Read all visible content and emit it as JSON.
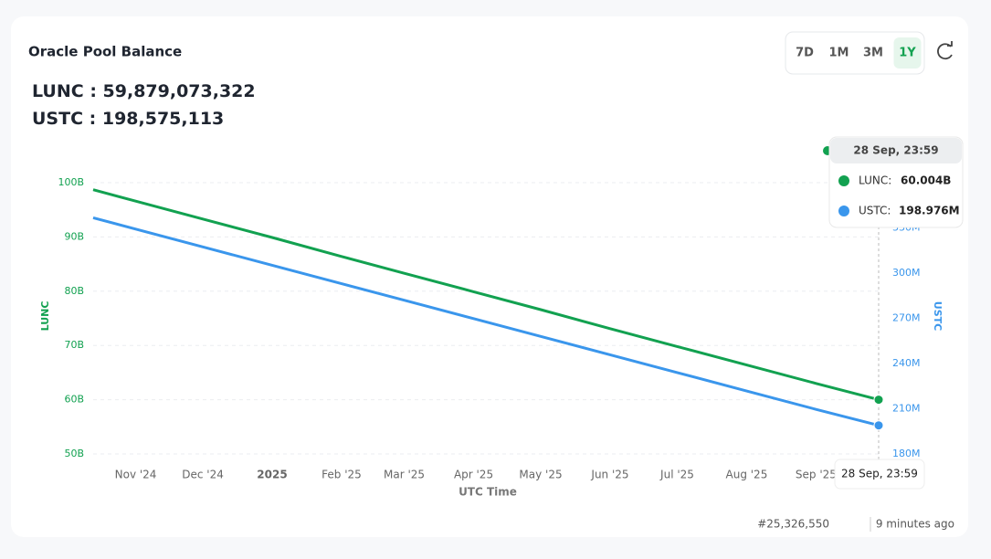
{
  "header": {
    "title": "Oracle Pool Balance",
    "balances": [
      {
        "label": "LUNC : ",
        "value": "59,879,073,322"
      },
      {
        "label": "USTC : ",
        "value": "198,575,113"
      }
    ]
  },
  "controls": {
    "ranges": [
      "7D",
      "1M",
      "3M",
      "1Y"
    ],
    "active": "1Y"
  },
  "chart_data": {
    "type": "line",
    "x": [
      "2024-10-13",
      "2024-11-01",
      "2024-12-01",
      "2025-01-01",
      "2025-02-01",
      "2025-03-01",
      "2025-04-01",
      "2025-05-01",
      "2025-06-01",
      "2025-07-01",
      "2025-08-01",
      "2025-09-01",
      "2025-09-28T23:59"
    ],
    "xlim": [
      "2024-10-13",
      "2025-09-28T23:59"
    ],
    "xticks": [
      {
        "value": "2024-11-01",
        "label": "Nov '24"
      },
      {
        "value": "2024-12-01",
        "label": "Dec '24"
      },
      {
        "value": "2025-01-01",
        "label": "2025"
      },
      {
        "value": "2025-02-01",
        "label": "Feb '25"
      },
      {
        "value": "2025-03-01",
        "label": "Mar '25"
      },
      {
        "value": "2025-04-01",
        "label": "Apr '25"
      },
      {
        "value": "2025-05-01",
        "label": "May '25"
      },
      {
        "value": "2025-06-01",
        "label": "Jun '25"
      },
      {
        "value": "2025-07-01",
        "label": "Jul '25"
      },
      {
        "value": "2025-08-01",
        "label": "Aug '25"
      },
      {
        "value": "2025-09-01",
        "label": "Sep '25"
      }
    ],
    "x_label": "UTC Time",
    "y_label": "LUNC",
    "y2_label": "USTC",
    "ylim": [
      50,
      100
    ],
    "yticks": [
      {
        "value": 50,
        "label": "50B"
      },
      {
        "value": 60,
        "label": "60B"
      },
      {
        "value": 70,
        "label": "70B"
      },
      {
        "value": 80,
        "label": "80B"
      },
      {
        "value": 90,
        "label": "90B"
      },
      {
        "value": 100,
        "label": "100B"
      }
    ],
    "y2lim": [
      180,
      360
    ],
    "y2ticks": [
      {
        "value": 180,
        "label": "180M"
      },
      {
        "value": 210,
        "label": "210M"
      },
      {
        "value": 240,
        "label": "240M"
      },
      {
        "value": 270,
        "label": "270M"
      },
      {
        "value": 300,
        "label": "300M"
      },
      {
        "value": 330,
        "label": "330M"
      }
    ],
    "grid": true,
    "series": [
      {
        "name": "LUNC",
        "color": "#12a150",
        "values": [
          98.7,
          96.6,
          93.3,
          89.9,
          86.4,
          83.3,
          79.9,
          76.6,
          73.1,
          69.8,
          66.4,
          63.0,
          60.004
        ]
      },
      {
        "name": "USTC",
        "color": "#3a96ec",
        "axis": "y2",
        "values": [
          336.7,
          329.2,
          317.4,
          305.2,
          293.0,
          282.0,
          269.8,
          258.0,
          245.8,
          234.0,
          221.8,
          209.6,
          198.976
        ]
      }
    ],
    "tooltip": {
      "date": "28 Sep, 23:59",
      "rows": [
        {
          "label": "LUNC:",
          "value": "60.004B"
        },
        {
          "label": "USTC:",
          "value": "198.976M"
        }
      ]
    },
    "crosshair_label": "28 Sep, 23:59"
  },
  "footer": {
    "block": "#25,326,550",
    "updated": "9 minutes ago"
  }
}
